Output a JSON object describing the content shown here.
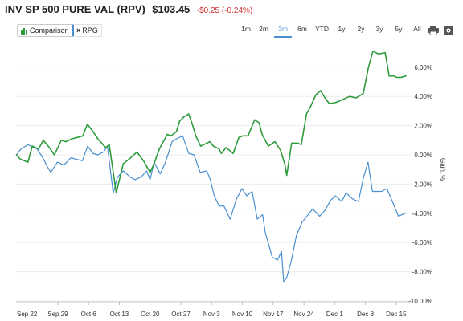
{
  "header": {
    "title": "INV SP 500 PURE VAL (RPV)",
    "price": "$103.45",
    "change": "-$0.25 (-0.24%)"
  },
  "toolbar": {
    "comparison_label": "Comparison",
    "comparison_chip": "RPG",
    "chip_close": "×",
    "ranges": [
      "1m",
      "2m",
      "3m",
      "6m",
      "YTD",
      "1y",
      "2y",
      "3y",
      "5y",
      "All"
    ],
    "active_range": "3m",
    "icons": [
      "print-icon",
      "settings-icon"
    ]
  },
  "colors": {
    "green": "#2e9b3c",
    "blue": "#4a8fd0",
    "negative": "#d32f2f"
  },
  "chart_data": {
    "type": "line",
    "ylabel": "Gain, %",
    "ylim": [
      -10,
      8
    ],
    "y_ticks": [
      6,
      4,
      2,
      0,
      -2,
      -4,
      -6,
      -8,
      -10
    ],
    "y_tick_labels": [
      "6.00%",
      "4.00%",
      "2.00%",
      "0.00%",
      "-2.00%",
      "-4.00%",
      "-6.00%",
      "-8.00%",
      "-10.00%"
    ],
    "x_tick_labels": [
      "Sep 22",
      "Sep 29",
      "Oct 6",
      "Oct 13",
      "Oct 20",
      "Oct 27",
      "Nov 3",
      "Nov 10",
      "Nov 17",
      "Nov 24",
      "Dec 1",
      "Dec 8",
      "Dec 15"
    ],
    "x_tick_days": [
      0,
      7,
      14,
      21,
      28,
      35,
      42,
      49,
      56,
      63,
      70,
      77,
      84
    ],
    "x_range": [
      -2.5,
      87.5
    ],
    "grid": "horizontal",
    "legend": "none",
    "series": [
      {
        "name": "RPV",
        "color": "#2e9b3c",
        "x": [
          -2.4,
          -1.5,
          0.2,
          1.2,
          2.6,
          3.7,
          5.1,
          6.2,
          7.8,
          8.8,
          10.2,
          11.5,
          12.7,
          13.7,
          15.0,
          16.1,
          17.9,
          18.7,
          20.3,
          21.9,
          23.6,
          25.0,
          26.5,
          28.0,
          28.9,
          30.1,
          31.9,
          32.8,
          34.0,
          34.7,
          35.7,
          36.8,
          37.7,
          38.4,
          39.5,
          41.6,
          42.4,
          43.7,
          44.2,
          45.3,
          46.9,
          48.2,
          49.1,
          50.3,
          51.8,
          52.8,
          53.5,
          54.9,
          56.4,
          57.7,
          58.7,
          59.1,
          60.2,
          61.6,
          62.4,
          63.6,
          64.5,
          65.7,
          66.8,
          67.8,
          68.8,
          70.4,
          71.9,
          73.4,
          74.9,
          76.5,
          77.7,
          78.7,
          80.0,
          81.5,
          82.4,
          83.4,
          84.1,
          85.1,
          86.2
        ],
        "y": [
          0.0,
          -0.3,
          -0.5,
          0.6,
          0.4,
          1.0,
          0.5,
          0.0,
          1.0,
          0.9,
          1.1,
          1.2,
          1.3,
          2.1,
          1.6,
          1.1,
          0.5,
          0.7,
          -2.6,
          -0.6,
          -0.2,
          0.2,
          -0.4,
          -1.2,
          -0.6,
          0.4,
          1.4,
          1.3,
          1.6,
          2.3,
          2.6,
          2.8,
          2.0,
          1.3,
          0.6,
          0.9,
          0.6,
          0.4,
          0.1,
          0.5,
          0.1,
          1.2,
          1.3,
          1.3,
          2.4,
          2.2,
          1.4,
          0.6,
          0.9,
          0.3,
          -0.7,
          -1.4,
          0.8,
          0.8,
          0.7,
          2.8,
          3.3,
          4.1,
          4.4,
          3.9,
          3.5,
          3.6,
          3.8,
          4.0,
          3.9,
          4.2,
          6.0,
          7.1,
          6.9,
          7.0,
          5.4,
          5.4,
          5.3,
          5.3,
          5.4
        ],
        "line_width": 1.6
      },
      {
        "name": "RPG",
        "color": "#4a8fd0",
        "x": [
          -2.4,
          -1.4,
          0.2,
          0.9,
          2.3,
          3.8,
          4.6,
          5.4,
          6.9,
          8.4,
          10.0,
          11.2,
          12.6,
          13.8,
          15.0,
          16.1,
          17.4,
          18.3,
          19.6,
          20.6,
          21.9,
          23.4,
          24.6,
          26.0,
          27.2,
          28.0,
          28.9,
          30.3,
          31.5,
          33.0,
          34.0,
          35.4,
          36.8,
          38.0,
          39.4,
          40.9,
          41.7,
          42.6,
          43.7,
          44.8,
          46.2,
          47.7,
          48.9,
          50.0,
          51.2,
          52.4,
          53.6,
          54.2,
          55.8,
          57.0,
          57.9,
          58.4,
          59.1,
          60.1,
          61.3,
          62.6,
          63.7,
          65.0,
          66.6,
          67.8,
          69.1,
          70.2,
          71.6,
          72.6,
          74.0,
          75.4,
          76.6,
          77.6,
          78.6,
          79.7,
          80.7,
          81.9,
          83.3,
          84.5,
          86.1
        ],
        "y": [
          0.0,
          0.4,
          0.7,
          0.6,
          0.4,
          -0.3,
          -0.8,
          -1.2,
          -0.5,
          -0.7,
          -0.2,
          -0.3,
          -0.4,
          0.6,
          0.1,
          0.0,
          0.2,
          0.6,
          -2.6,
          -1.5,
          -1.1,
          -1.5,
          -1.7,
          -1.5,
          -1.1,
          -1.7,
          -0.5,
          -1.3,
          -0.5,
          0.9,
          1.1,
          1.3,
          0.1,
          0.0,
          -1.2,
          -1.1,
          -1.7,
          -2.8,
          -3.5,
          -3.5,
          -4.4,
          -3.0,
          -2.3,
          -2.8,
          -2.5,
          -4.4,
          -4.1,
          -5.3,
          -7.0,
          -7.2,
          -6.6,
          -8.7,
          -8.4,
          -7.3,
          -5.5,
          -4.6,
          -4.2,
          -3.7,
          -4.2,
          -3.8,
          -3.1,
          -2.8,
          -3.2,
          -2.6,
          -3.0,
          -3.2,
          -1.5,
          -0.5,
          -2.5,
          -2.5,
          -2.5,
          -2.3,
          -3.3,
          -4.2,
          -4.0
        ],
        "line_width": 1.2
      }
    ]
  }
}
